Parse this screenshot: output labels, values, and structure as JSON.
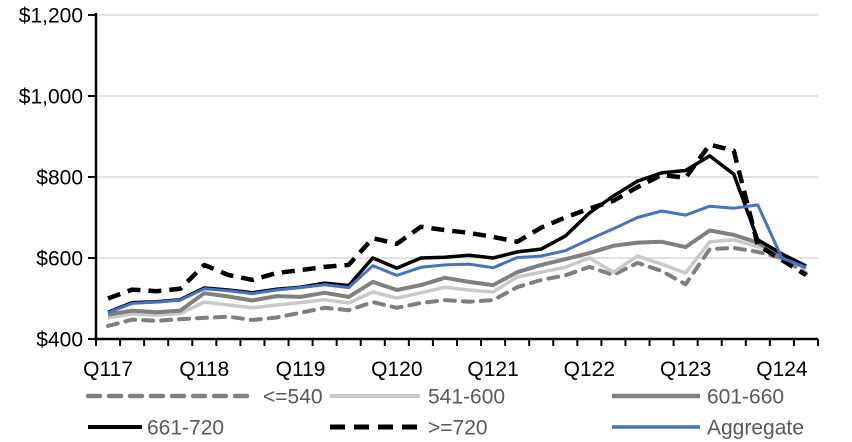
{
  "figure": {
    "background": "#FFFFFF",
    "title": ""
  },
  "chart_data": {
    "type": "line",
    "title": "",
    "xlabel": "",
    "ylabel": "",
    "currency_format": true,
    "categories": [
      "Q117",
      "Q217",
      "Q317",
      "Q417",
      "Q118",
      "Q218",
      "Q318",
      "Q418",
      "Q119",
      "Q219",
      "Q319",
      "Q419",
      "Q120",
      "Q220",
      "Q320",
      "Q420",
      "Q121",
      "Q221",
      "Q321",
      "Q421",
      "Q122",
      "Q222",
      "Q322",
      "Q422",
      "Q123",
      "Q223",
      "Q323",
      "Q423",
      "Q124",
      "Q224"
    ],
    "x_tick_label_indices": [
      0,
      4,
      8,
      12,
      16,
      20,
      24,
      28
    ],
    "x_tick_labels_shown": [
      "Q117",
      "Q118",
      "Q119",
      "Q120",
      "Q121",
      "Q122",
      "Q123",
      "Q124"
    ],
    "ylim": [
      400,
      1200
    ],
    "y_ticks": [
      400,
      600,
      800,
      1000,
      1200
    ],
    "y_tick_labels": [
      "$400",
      "$600",
      "$800",
      "$1,000",
      "$1,200"
    ],
    "grid": "horizontal",
    "gridline_color": "#D9D9D9",
    "axis_color": "#000000",
    "tick_label_color": "#000000",
    "series": [
      {
        "name": "<=540",
        "color": "#7F7F7F",
        "style": "dashed",
        "values": [
          432,
          448,
          445,
          449,
          452,
          455,
          447,
          453,
          465,
          477,
          471,
          491,
          477,
          489,
          496,
          492,
          496,
          528,
          546,
          557,
          578,
          558,
          588,
          568,
          535,
          622,
          625,
          615,
          600,
          562
        ]
      },
      {
        "name": "541-600",
        "color": "#C9C9C9",
        "style": "solid",
        "values": [
          452,
          462,
          459,
          463,
          491,
          484,
          477,
          484,
          490,
          497,
          489,
          516,
          501,
          514,
          528,
          521,
          516,
          553,
          565,
          577,
          600,
          565,
          605,
          585,
          563,
          640,
          645,
          628,
          608,
          572
        ]
      },
      {
        "name": "601-660",
        "color": "#808080",
        "style": "solid",
        "values": [
          460,
          470,
          466,
          470,
          513,
          505,
          495,
          506,
          504,
          514,
          504,
          541,
          521,
          533,
          551,
          541,
          533,
          565,
          583,
          597,
          612,
          630,
          638,
          640,
          627,
          668,
          657,
          638,
          602,
          576
        ]
      },
      {
        "name": "661-720",
        "color": "#000000",
        "style": "solid",
        "values": [
          466,
          490,
          492,
          497,
          526,
          521,
          514,
          523,
          528,
          538,
          532,
          600,
          575,
          600,
          602,
          607,
          600,
          615,
          622,
          654,
          711,
          753,
          790,
          810,
          816,
          852,
          807,
          645,
          610,
          580
        ]
      },
      {
        "name": ">=720",
        "color": "#000000",
        "style": "dashed",
        "values": [
          500,
          522,
          518,
          524,
          583,
          558,
          546,
          563,
          570,
          578,
          583,
          649,
          635,
          677,
          669,
          662,
          652,
          640,
          675,
          700,
          722,
          741,
          775,
          805,
          798,
          880,
          865,
          632,
          595,
          558
        ]
      },
      {
        "name": "Aggregate",
        "color": "#4472C4",
        "style": "solid",
        "values": [
          465,
          488,
          491,
          496,
          524,
          519,
          512,
          521,
          527,
          534,
          527,
          581,
          557,
          577,
          583,
          585,
          576,
          601,
          605,
          618,
          646,
          672,
          700,
          716,
          706,
          728,
          723,
          731,
          600,
          577
        ]
      }
    ],
    "legend": {
      "position": "bottom",
      "columns": 3,
      "rows": 2,
      "text_color": "#595959",
      "items": [
        "<=540",
        "541-600",
        "601-660",
        "661-720",
        ">=720",
        "Aggregate"
      ]
    }
  }
}
